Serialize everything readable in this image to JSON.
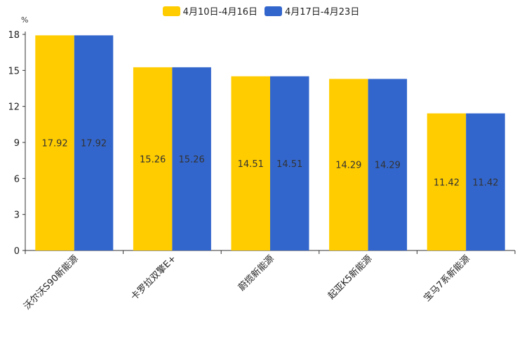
{
  "chart_data": {
    "type": "bar",
    "title": "",
    "unit": "%",
    "categories": [
      "沃尔沃S90新能源",
      "卡罗拉双擎E+",
      "蔚揽新能源",
      "起亚K5新能源",
      "宝马7系新能源"
    ],
    "series": [
      {
        "name": "4月10日-4月16日",
        "color": "#ffcc00",
        "values": [
          17.92,
          15.26,
          14.51,
          14.29,
          11.42
        ]
      },
      {
        "name": "4月17日-4月23日",
        "color": "#3366cc",
        "values": [
          17.92,
          15.26,
          14.51,
          14.29,
          11.42
        ]
      }
    ],
    "ylim": [
      0,
      18
    ],
    "yticks": [
      "0",
      "3",
      "6",
      "9",
      "12",
      "15",
      "18"
    ],
    "legend_position": "top-center",
    "grid": false
  }
}
